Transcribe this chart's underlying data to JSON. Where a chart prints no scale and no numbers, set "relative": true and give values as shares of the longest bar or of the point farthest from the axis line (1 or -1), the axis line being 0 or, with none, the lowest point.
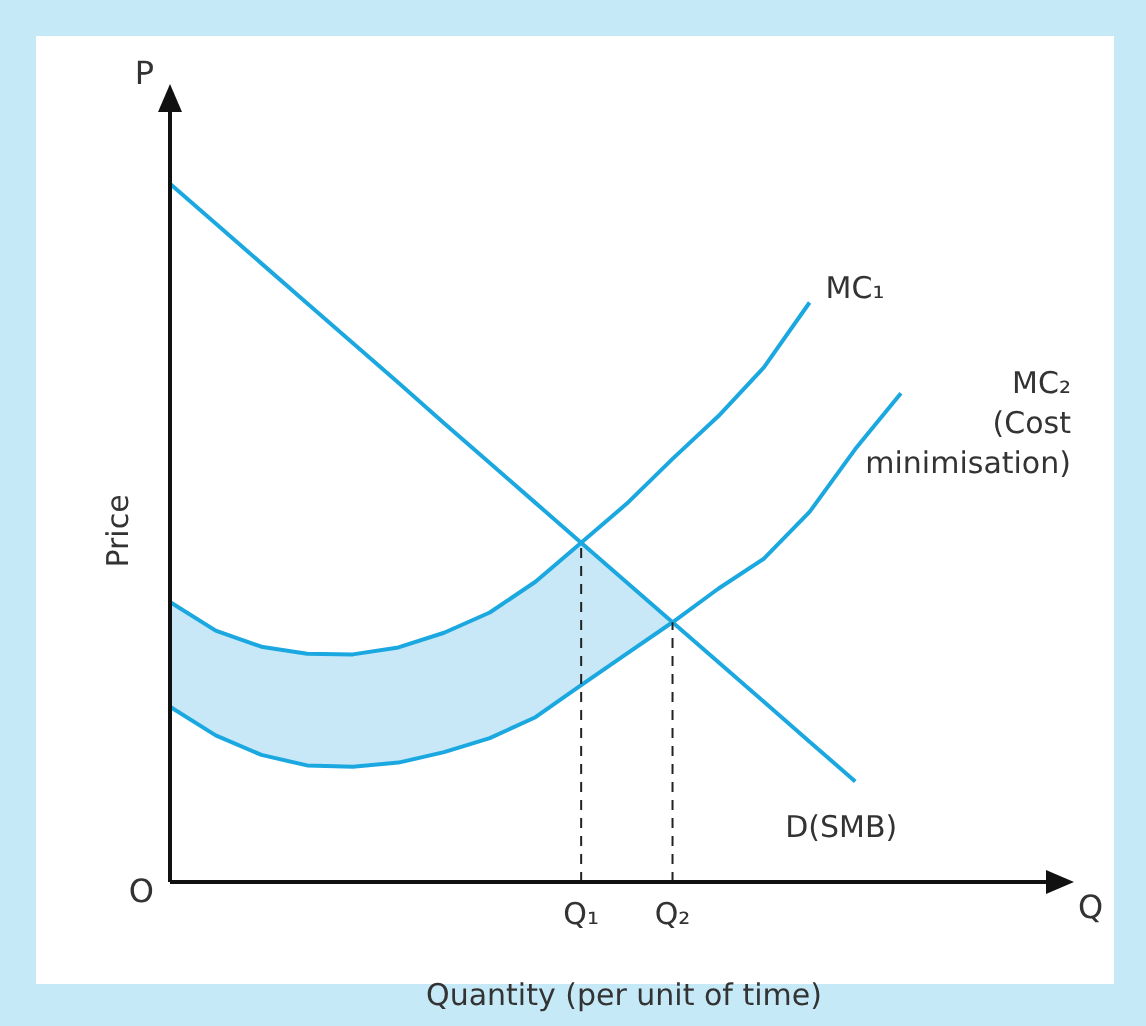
{
  "chart_data": {
    "type": "line",
    "relative": true,
    "xlabel": "Quantity (per unit of time)",
    "ylabel": "Price",
    "categories": [
      null,
      null,
      null,
      null,
      null,
      null,
      null,
      null,
      null,
      "Q₁",
      null,
      "Q₂",
      null,
      null,
      null,
      null,
      null,
      null,
      null,
      null
    ],
    "legend": false,
    "marker": "none",
    "line_style": "solid",
    "annotations": [
      "P",
      "Q",
      "O"
    ],
    "ref_lines": [
      {
        "axis": "x",
        "value": "Q₁",
        "color": "#222222",
        "line_style": "dashed"
      },
      {
        "axis": "x",
        "value": "Q₂",
        "color": "#222222",
        "line_style": "dashed"
      }
    ],
    "series": [
      {
        "name": "D(SMB)",
        "color": "#1ba8e0",
        "values": [
          1,
          0.943,
          0.886,
          0.829,
          0.772,
          0.715,
          0.657,
          0.6,
          0.543,
          0.486,
          0.429,
          0.372,
          0.315,
          0.258,
          0.201,
          0.144,
          null,
          null,
          null,
          null
        ]
      },
      {
        "name": "MC₁",
        "color": "#1ba8e0",
        "values": [
          0.401,
          0.36,
          0.337,
          0.327,
          0.326,
          0.336,
          0.357,
          0.386,
          0.43,
          0.486,
          0.542,
          0.606,
          0.667,
          0.737,
          0.83,
          null,
          null,
          null,
          null,
          null
        ]
      },
      {
        "type": "area",
        "color": "#c8e8f7",
        "values": [
          0.401,
          0.36,
          0.337,
          0.327,
          0.326,
          0.336,
          0.357,
          0.386,
          0.43,
          0.486,
          0.429,
          0.372,
          null,
          null,
          null,
          null,
          null,
          null,
          null,
          null
        ]
      },
      {
        "name": "MC₂ (Cost minimisation)",
        "color": "#1ba8e0",
        "values": [
          0.251,
          0.21,
          0.182,
          0.167,
          0.165,
          0.171,
          0.186,
          0.206,
          0.236,
          0.282,
          0.327,
          0.372,
          0.42,
          0.463,
          0.53,
          0.62,
          0.7,
          null,
          null,
          null
        ]
      }
    ]
  }
}
